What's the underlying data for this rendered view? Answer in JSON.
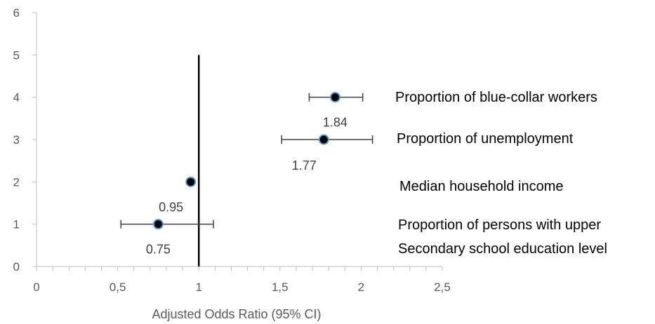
{
  "chart_data": {
    "type": "scatter",
    "title": "",
    "xlabel": "Adjusted Odds Ratio (95% CI)",
    "ylabel": "",
    "xlim": [
      0,
      2.5
    ],
    "ylim": [
      0,
      6
    ],
    "x_ticks": [
      "0",
      "0,5",
      "1",
      "1,5",
      "2",
      "2,5"
    ],
    "y_ticks": [
      "0",
      "1",
      "2",
      "3",
      "4",
      "5",
      "6"
    ],
    "reference_line_x": 1,
    "reference_line_y_range": [
      0,
      5
    ],
    "grid": false,
    "legend": "none",
    "points": [
      {
        "x": 1.84,
        "y": 4,
        "ci_low": 1.68,
        "ci_high": 2.01,
        "label": "1.84"
      },
      {
        "x": 1.77,
        "y": 3,
        "ci_low": 1.51,
        "ci_high": 2.07,
        "label": "1.77"
      },
      {
        "x": 0.95,
        "y": 2,
        "ci_low": null,
        "ci_high": null,
        "label": "0.95"
      },
      {
        "x": 0.75,
        "y": 1,
        "ci_low": 0.52,
        "ci_high": 1.09,
        "label": "0.75"
      }
    ],
    "annotations": [
      {
        "text": "Proportion of blue-collar workers"
      },
      {
        "text": "Proportion of unemployment"
      },
      {
        "text": "Median household income"
      },
      {
        "text": "Proportion of persons with upper"
      },
      {
        "text": "Secondary school education level"
      }
    ],
    "colors": {
      "marker_fill": "#000000",
      "marker_edge": "#5B9BD5",
      "errorbar": "#404040",
      "reference_line": "#000000",
      "axis": "#BFBFBF"
    }
  }
}
